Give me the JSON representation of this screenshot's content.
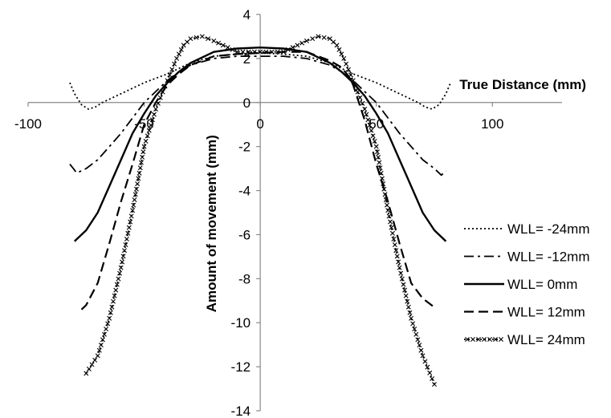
{
  "chart_data": {
    "type": "line",
    "title": "",
    "xlabel": "True Distance (mm)",
    "ylabel": "Amount of movement (mm)",
    "xlim": [
      -100,
      130
    ],
    "ylim": [
      -14,
      4
    ],
    "xticks": [
      -100,
      -50,
      0,
      50,
      100
    ],
    "yticks": [
      4,
      2,
      0,
      -2,
      -4,
      -6,
      -8,
      -10,
      -12,
      -14
    ],
    "xtick_labels": [
      "-100",
      "-50",
      "0",
      "50",
      "100"
    ],
    "ytick_labels": [
      "4",
      "2",
      "0",
      "-2",
      "-4",
      "-6",
      "-8",
      "-10",
      "-12",
      "-14"
    ],
    "grid": false,
    "legend_position": "right",
    "series": [
      {
        "name": "WLL= -24mm",
        "style": "dotted",
        "x": [
          -82,
          -80,
          -77,
          -74,
          -71,
          -68,
          -60,
          -50,
          -40,
          -30,
          -20,
          -10,
          0,
          10,
          20,
          30,
          40,
          50,
          60,
          68,
          71,
          74,
          77,
          80,
          82
        ],
        "y": [
          0.9,
          0.4,
          -0.1,
          -0.3,
          -0.2,
          0.0,
          0.4,
          0.9,
          1.3,
          1.8,
          2.1,
          2.2,
          2.25,
          2.2,
          2.1,
          1.8,
          1.3,
          0.9,
          0.4,
          0.0,
          -0.2,
          -0.3,
          -0.1,
          0.4,
          0.9
        ]
      },
      {
        "name": "WLL= -12mm",
        "style": "dashdot",
        "x": [
          -82,
          -79,
          -75,
          -70,
          -65,
          -60,
          -55,
          -50,
          -45,
          -40,
          -35,
          -30,
          -20,
          -10,
          0,
          10,
          20,
          30,
          35,
          40,
          45,
          50,
          55,
          60,
          65,
          70,
          75,
          78,
          80
        ],
        "y": [
          -2.8,
          -3.2,
          -3.0,
          -2.6,
          -2.0,
          -1.4,
          -0.7,
          0.0,
          0.5,
          1.0,
          1.4,
          1.7,
          2.0,
          2.1,
          2.1,
          2.1,
          2.0,
          1.7,
          1.4,
          1.0,
          0.5,
          0.0,
          -0.7,
          -1.4,
          -2.0,
          -2.6,
          -3.0,
          -3.3,
          -3.1
        ]
      },
      {
        "name": "WLL= 0mm",
        "style": "solid",
        "x": [
          -80,
          -75,
          -70,
          -65,
          -60,
          -55,
          -50,
          -45,
          -40,
          -35,
          -30,
          -20,
          -10,
          0,
          10,
          20,
          30,
          35,
          40,
          45,
          50,
          55,
          60,
          65,
          70,
          75,
          80
        ],
        "y": [
          -6.3,
          -5.8,
          -5.0,
          -3.8,
          -2.6,
          -1.4,
          -0.5,
          0.3,
          0.9,
          1.4,
          1.8,
          2.3,
          2.45,
          2.5,
          2.45,
          2.3,
          1.8,
          1.4,
          0.9,
          0.3,
          -0.5,
          -1.4,
          -2.6,
          -3.8,
          -5.0,
          -5.8,
          -6.3
        ]
      },
      {
        "name": "WLL= 12mm",
        "style": "dashed",
        "x": [
          -77,
          -75,
          -70,
          -65,
          -60,
          -55,
          -50,
          -45,
          -42,
          -40,
          -35,
          -30,
          -20,
          -10,
          0,
          10,
          20,
          30,
          35,
          38,
          40,
          45,
          50,
          55,
          60,
          65,
          70,
          75
        ],
        "y": [
          -9.4,
          -9.2,
          -8.2,
          -6.4,
          -4.5,
          -2.8,
          -1.0,
          0.0,
          0.5,
          0.8,
          1.3,
          1.7,
          2.1,
          2.2,
          2.25,
          2.3,
          2.3,
          1.9,
          1.6,
          1.2,
          0.8,
          -0.8,
          -2.8,
          -4.5,
          -6.4,
          -8.2,
          -8.9,
          -9.3
        ]
      },
      {
        "name": "WLL= 24mm",
        "style": "dotted-x",
        "x": [
          -75,
          -70,
          -65,
          -60,
          -55,
          -50,
          -45,
          -40,
          -36,
          -33,
          -30,
          -25,
          -20,
          -10,
          0,
          10,
          20,
          25,
          30,
          33,
          36,
          40,
          45,
          50,
          55,
          60,
          65,
          70,
          75
        ],
        "y": [
          -12.3,
          -11.5,
          -9.8,
          -7.5,
          -4.9,
          -2.0,
          -0.3,
          1.0,
          2.0,
          2.6,
          2.9,
          3.0,
          2.8,
          2.3,
          2.3,
          2.3,
          2.8,
          3.0,
          2.9,
          2.6,
          2.0,
          1.0,
          -0.3,
          -2.0,
          -4.9,
          -7.5,
          -9.8,
          -11.5,
          -12.8
        ]
      }
    ]
  }
}
